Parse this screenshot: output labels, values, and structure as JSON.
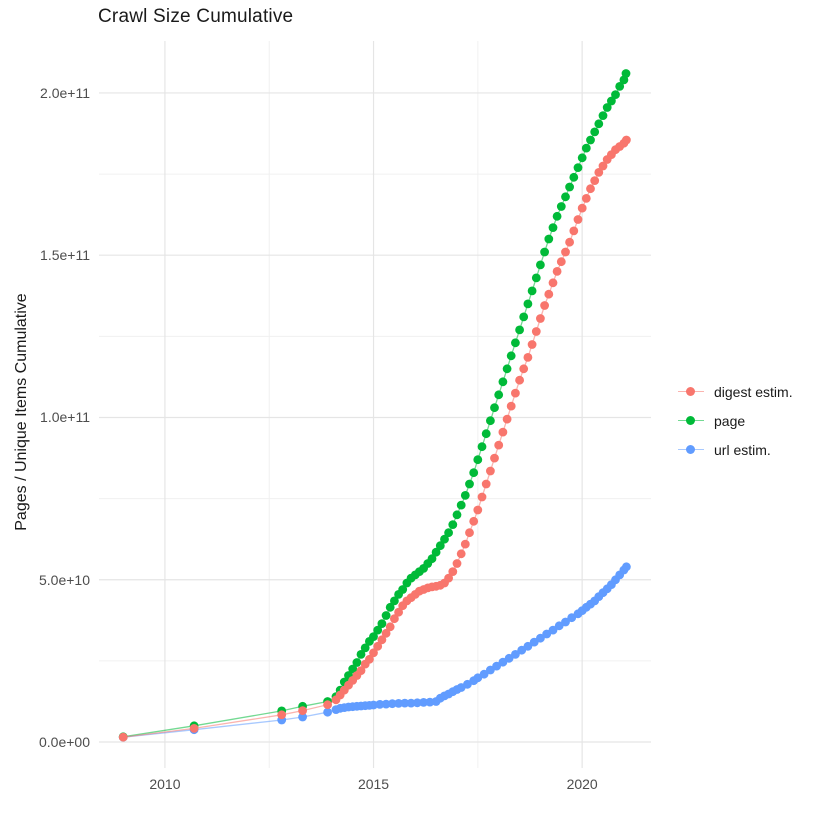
{
  "page": {
    "title": "Crawl Size Cumulative"
  },
  "legend": {
    "position": "right",
    "items": [
      {
        "label": "digest estim.",
        "color": "#F8766D"
      },
      {
        "label": "page",
        "color": "#00BA38"
      },
      {
        "label": "url estim.",
        "color": "#619CFF"
      }
    ]
  },
  "colors": {
    "background": "#ffffff",
    "grid_major": "#e5e5e5",
    "grid_minor": "#f0f0f0",
    "axis_text": "#4d4d4d",
    "title_text": "#1a1a1a",
    "series_red": "#F8766D",
    "series_green": "#00BA38",
    "series_blue": "#619CFF"
  },
  "chart_data": {
    "type": "scatter",
    "title": "Crawl Size Cumulative",
    "xlabel": "",
    "ylabel": "Pages / Unique Items Cumulative",
    "unit_note": "point values given in billions (1e9) of pages / unique items, x as decimal year",
    "grid": "major and minor, light gray on white",
    "legend_position": "right",
    "xlim": [
      2008.42,
      2021.65
    ],
    "ylim_billions": [
      -8,
      216
    ],
    "x_major_ticks": [
      2010,
      2015,
      2020
    ],
    "x_tick_labels": [
      "2010",
      "2015",
      "2020"
    ],
    "x_minor_ticks": [
      2012.5,
      2017.5
    ],
    "y_major_ticks_billions": [
      0,
      50,
      100,
      150,
      200
    ],
    "y_tick_labels": [
      "0.0e+00",
      "5.0e+10",
      "1.0e+11",
      "1.5e+11",
      "2.0e+11"
    ],
    "y_minor_ticks_billions": [
      25,
      75,
      125,
      175
    ],
    "draw_order": [
      "url estim.",
      "page",
      "digest estim."
    ],
    "series": [
      {
        "name": "url estim.",
        "color": "#619CFF",
        "points": [
          [
            2009.0,
            1.5
          ],
          [
            2010.7,
            3.8
          ],
          [
            2012.8,
            6.8
          ],
          [
            2013.3,
            7.7
          ],
          [
            2013.9,
            9.2
          ],
          [
            2014.1,
            10.0
          ],
          [
            2014.2,
            10.4
          ],
          [
            2014.3,
            10.6
          ],
          [
            2014.4,
            10.8
          ],
          [
            2014.5,
            10.9
          ],
          [
            2014.6,
            11.0
          ],
          [
            2014.7,
            11.1
          ],
          [
            2014.8,
            11.2
          ],
          [
            2014.9,
            11.3
          ],
          [
            2015.0,
            11.4
          ],
          [
            2015.15,
            11.6
          ],
          [
            2015.3,
            11.7
          ],
          [
            2015.45,
            11.8
          ],
          [
            2015.6,
            11.9
          ],
          [
            2015.75,
            12.0
          ],
          [
            2015.9,
            12.0
          ],
          [
            2016.05,
            12.1
          ],
          [
            2016.2,
            12.2
          ],
          [
            2016.35,
            12.3
          ],
          [
            2016.5,
            12.5
          ],
          [
            2016.6,
            13.5
          ],
          [
            2016.7,
            14.2
          ],
          [
            2016.8,
            14.8
          ],
          [
            2016.9,
            15.5
          ],
          [
            2017.0,
            16.2
          ],
          [
            2017.1,
            16.8
          ],
          [
            2017.25,
            17.8
          ],
          [
            2017.4,
            18.9
          ],
          [
            2017.5,
            19.8
          ],
          [
            2017.65,
            20.9
          ],
          [
            2017.8,
            22.2
          ],
          [
            2017.95,
            23.4
          ],
          [
            2018.1,
            24.6
          ],
          [
            2018.25,
            25.8
          ],
          [
            2018.4,
            27.0
          ],
          [
            2018.55,
            28.3
          ],
          [
            2018.7,
            29.5
          ],
          [
            2018.85,
            30.8
          ],
          [
            2019.0,
            32.0
          ],
          [
            2019.15,
            33.3
          ],
          [
            2019.3,
            34.5
          ],
          [
            2019.45,
            35.8
          ],
          [
            2019.6,
            37.0
          ],
          [
            2019.75,
            38.3
          ],
          [
            2019.9,
            39.5
          ],
          [
            2020.0,
            40.5
          ],
          [
            2020.1,
            41.5
          ],
          [
            2020.2,
            42.5
          ],
          [
            2020.3,
            43.5
          ],
          [
            2020.4,
            44.8
          ],
          [
            2020.5,
            46.0
          ],
          [
            2020.6,
            47.2
          ],
          [
            2020.7,
            48.5
          ],
          [
            2020.8,
            50.0
          ],
          [
            2020.9,
            51.5
          ],
          [
            2021.0,
            53.0
          ],
          [
            2021.06,
            54.0
          ]
        ]
      },
      {
        "name": "page",
        "color": "#00BA38",
        "points": [
          [
            2009.0,
            1.6
          ],
          [
            2010.7,
            5.0
          ],
          [
            2012.8,
            9.6
          ],
          [
            2013.3,
            11.0
          ],
          [
            2013.9,
            12.5
          ],
          [
            2014.1,
            14.0
          ],
          [
            2014.2,
            16.0
          ],
          [
            2014.3,
            18.5
          ],
          [
            2014.4,
            20.5
          ],
          [
            2014.5,
            22.5
          ],
          [
            2014.6,
            24.5
          ],
          [
            2014.7,
            27.0
          ],
          [
            2014.8,
            29.0
          ],
          [
            2014.9,
            31.0
          ],
          [
            2015.0,
            32.5
          ],
          [
            2015.1,
            34.5
          ],
          [
            2015.2,
            36.5
          ],
          [
            2015.3,
            39.0
          ],
          [
            2015.4,
            41.5
          ],
          [
            2015.5,
            43.5
          ],
          [
            2015.6,
            45.5
          ],
          [
            2015.7,
            47.0
          ],
          [
            2015.8,
            49.0
          ],
          [
            2015.9,
            50.5
          ],
          [
            2016.0,
            51.5
          ],
          [
            2016.1,
            52.5
          ],
          [
            2016.2,
            53.5
          ],
          [
            2016.3,
            55.0
          ],
          [
            2016.4,
            56.5
          ],
          [
            2016.5,
            58.5
          ],
          [
            2016.6,
            60.5
          ],
          [
            2016.7,
            62.5
          ],
          [
            2016.8,
            64.5
          ],
          [
            2016.9,
            67.0
          ],
          [
            2017.0,
            70.0
          ],
          [
            2017.1,
            73.0
          ],
          [
            2017.2,
            76.0
          ],
          [
            2017.3,
            79.5
          ],
          [
            2017.4,
            83.0
          ],
          [
            2017.5,
            87.0
          ],
          [
            2017.6,
            91.0
          ],
          [
            2017.7,
            95.0
          ],
          [
            2017.8,
            99.0
          ],
          [
            2017.9,
            103.0
          ],
          [
            2018.0,
            107.0
          ],
          [
            2018.1,
            111.0
          ],
          [
            2018.2,
            115.0
          ],
          [
            2018.3,
            119.0
          ],
          [
            2018.4,
            123.0
          ],
          [
            2018.5,
            127.0
          ],
          [
            2018.6,
            131.0
          ],
          [
            2018.7,
            135.0
          ],
          [
            2018.8,
            139.0
          ],
          [
            2018.9,
            143.0
          ],
          [
            2019.0,
            147.0
          ],
          [
            2019.1,
            151.0
          ],
          [
            2019.2,
            155.0
          ],
          [
            2019.3,
            158.5
          ],
          [
            2019.4,
            162.0
          ],
          [
            2019.5,
            165.0
          ],
          [
            2019.6,
            168.0
          ],
          [
            2019.7,
            171.0
          ],
          [
            2019.8,
            174.0
          ],
          [
            2019.9,
            177.0
          ],
          [
            2020.0,
            180.0
          ],
          [
            2020.1,
            183.0
          ],
          [
            2020.2,
            185.5
          ],
          [
            2020.3,
            188.0
          ],
          [
            2020.4,
            190.5
          ],
          [
            2020.5,
            193.0
          ],
          [
            2020.6,
            195.5
          ],
          [
            2020.7,
            197.5
          ],
          [
            2020.8,
            199.5
          ],
          [
            2020.9,
            202.0
          ],
          [
            2021.0,
            204.0
          ],
          [
            2021.05,
            206.0
          ]
        ]
      },
      {
        "name": "digest estim.",
        "color": "#F8766D",
        "points": [
          [
            2009.0,
            1.5
          ],
          [
            2010.7,
            4.2
          ],
          [
            2012.8,
            8.4
          ],
          [
            2013.3,
            9.7
          ],
          [
            2013.9,
            11.5
          ],
          [
            2014.1,
            13.0
          ],
          [
            2014.2,
            14.5
          ],
          [
            2014.3,
            16.0
          ],
          [
            2014.4,
            17.5
          ],
          [
            2014.5,
            19.0
          ],
          [
            2014.6,
            20.5
          ],
          [
            2014.7,
            22.0
          ],
          [
            2014.8,
            24.0
          ],
          [
            2014.9,
            25.5
          ],
          [
            2015.0,
            27.5
          ],
          [
            2015.1,
            29.5
          ],
          [
            2015.2,
            31.5
          ],
          [
            2015.3,
            33.5
          ],
          [
            2015.4,
            35.5
          ],
          [
            2015.5,
            38.0
          ],
          [
            2015.6,
            40.0
          ],
          [
            2015.7,
            42.0
          ],
          [
            2015.8,
            43.5
          ],
          [
            2015.9,
            44.5
          ],
          [
            2016.0,
            45.5
          ],
          [
            2016.1,
            46.5
          ],
          [
            2016.2,
            47.0
          ],
          [
            2016.3,
            47.5
          ],
          [
            2016.4,
            47.8
          ],
          [
            2016.5,
            48.0
          ],
          [
            2016.6,
            48.3
          ],
          [
            2016.7,
            49.0
          ],
          [
            2016.8,
            50.5
          ],
          [
            2016.9,
            52.5
          ],
          [
            2017.0,
            55.0
          ],
          [
            2017.1,
            58.0
          ],
          [
            2017.2,
            61.0
          ],
          [
            2017.3,
            64.5
          ],
          [
            2017.4,
            68.0
          ],
          [
            2017.5,
            71.5
          ],
          [
            2017.6,
            75.5
          ],
          [
            2017.7,
            79.5
          ],
          [
            2017.8,
            83.5
          ],
          [
            2017.9,
            87.5
          ],
          [
            2018.0,
            91.5
          ],
          [
            2018.1,
            95.5
          ],
          [
            2018.2,
            99.5
          ],
          [
            2018.3,
            103.5
          ],
          [
            2018.4,
            107.5
          ],
          [
            2018.5,
            111.5
          ],
          [
            2018.6,
            115.0
          ],
          [
            2018.7,
            118.5
          ],
          [
            2018.8,
            122.5
          ],
          [
            2018.9,
            126.5
          ],
          [
            2019.0,
            130.5
          ],
          [
            2019.1,
            134.5
          ],
          [
            2019.2,
            138.0
          ],
          [
            2019.3,
            141.5
          ],
          [
            2019.4,
            145.0
          ],
          [
            2019.5,
            148.0
          ],
          [
            2019.6,
            151.0
          ],
          [
            2019.7,
            154.0
          ],
          [
            2019.8,
            157.5
          ],
          [
            2019.9,
            161.0
          ],
          [
            2020.0,
            164.5
          ],
          [
            2020.1,
            167.5
          ],
          [
            2020.2,
            170.5
          ],
          [
            2020.3,
            173.0
          ],
          [
            2020.4,
            175.5
          ],
          [
            2020.5,
            177.5
          ],
          [
            2020.6,
            179.5
          ],
          [
            2020.7,
            181.0
          ],
          [
            2020.8,
            182.5
          ],
          [
            2020.9,
            183.5
          ],
          [
            2021.0,
            184.5
          ],
          [
            2021.06,
            185.5
          ]
        ]
      }
    ]
  }
}
